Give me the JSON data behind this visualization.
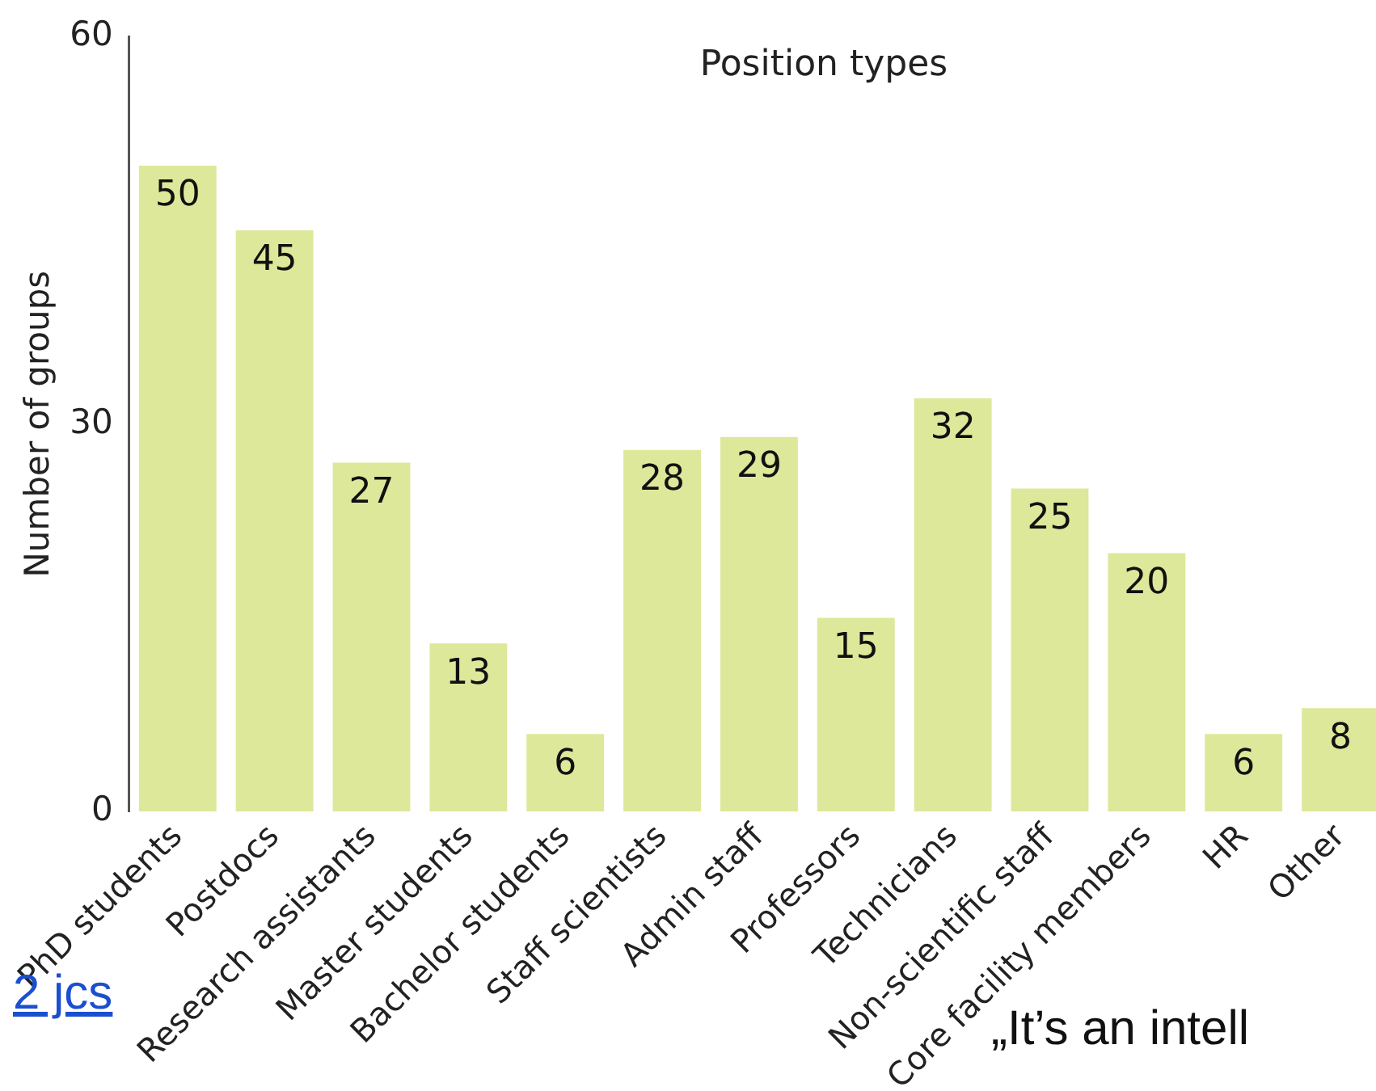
{
  "chart_data": {
    "type": "bar",
    "title": "Position types",
    "ylabel": "Number of groups",
    "categories": [
      "PhD students",
      "Postdocs",
      "Research assistants",
      "Master students",
      "Bachelor students",
      "Staff scientists",
      "Admin staff",
      "Professors",
      "Technicians",
      "Non-scientific staff",
      "Core facility members",
      "HR",
      "Other"
    ],
    "values": [
      50,
      45,
      27,
      13,
      6,
      28,
      29,
      15,
      32,
      25,
      20,
      6,
      8
    ],
    "color": "#dde89a",
    "ylim": [
      0,
      60
    ],
    "yticks": [
      0,
      30,
      60
    ],
    "grid": false,
    "legend": false,
    "data_labels": true,
    "annotations": [
      "2 jcs",
      "„It’s an intell"
    ]
  }
}
